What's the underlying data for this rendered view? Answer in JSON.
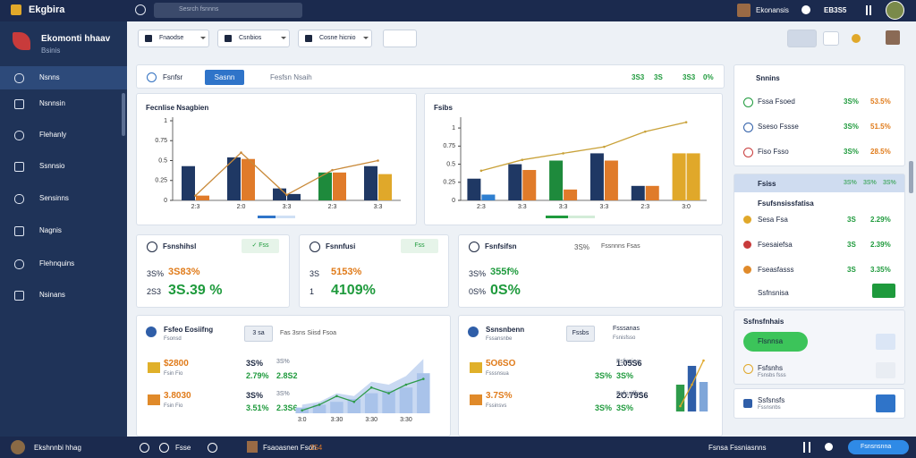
{
  "topbar": {
    "logo": "Ekgbira",
    "search": "Sesrch fsnnns",
    "user": "Ekonansis",
    "code": "EB3S5"
  },
  "sidebar": {
    "brand": "Ekomonti hhaav",
    "sub": "Bsinis",
    "menu": [
      "Nsnns",
      "Nsnnsin",
      "Flehanly",
      "Ssnnsio",
      "Sensinns",
      "Nagnis",
      "Flehnquins",
      "Nsinans"
    ]
  },
  "toolbar": {
    "filters": [
      "Fnaodse",
      "Csnbios",
      "Cosne hicnio"
    ]
  },
  "overview": {
    "tab": "Fsnfsr",
    "button": "Sasnn",
    "label": "Fesfsn Nsaih",
    "stats": [
      "3S3",
      "3S",
      "3S3",
      "0%"
    ]
  },
  "kpis": [
    {
      "title": "Fsnshihsl",
      "badge": "✓ Fss",
      "rows": [
        [
          "3S%",
          "3S83%"
        ],
        [
          "2S3",
          "3S.39 %"
        ]
      ]
    },
    {
      "title": "Fsnnfusi",
      "badge": "Fss",
      "rows": [
        [
          "3S",
          "5153%"
        ],
        [
          "1",
          "4109%"
        ]
      ]
    },
    {
      "title": "Fsnfsifsn",
      "note": "3S%",
      "sub": "Fssnnns Fsas",
      "rows": [
        [
          "3S%",
          "355f%"
        ],
        [
          "0S%",
          "0S%"
        ]
      ]
    }
  ],
  "left_card": {
    "title": "Fsfeo Eosiifng",
    "sub": "Fsonsd",
    "button": "3 sa",
    "filter": "Fas 3sns Siisd Fsoa",
    "rows": [
      [
        "$2800",
        "Fsin Fio",
        "2.8S2",
        "3S%",
        "2.79%",
        "3S%"
      ],
      [
        "3.8030",
        "Fsin Fio",
        "2.3S6",
        "3S%",
        "3.51%",
        "3S%"
      ]
    ]
  },
  "right_card": {
    "title": "Ssnsnbenn",
    "sub": "Fssansnbe",
    "button": "Fssbs",
    "tab": "Fsssanas",
    "tab_sub": "Fsnisfsso",
    "rows": [
      [
        "5O6SO",
        "Fsssnsua",
        "3S%",
        "1.05S6",
        "3S%",
        "Fsfnsioa"
      ],
      [
        "3.7S%",
        "Fssinsvs",
        "3S%",
        "2O.79S6",
        "3S%",
        "Fsfnsiffsa"
      ]
    ]
  },
  "panel_a": {
    "title": "Snnins",
    "rows": [
      [
        "Fssa Fsoed",
        "3S%",
        "53.5%"
      ],
      [
        "Sseso Fssse",
        "3S%",
        "51.5%"
      ],
      [
        "Fiso Fsso",
        "3S%",
        "28.5%"
      ]
    ]
  },
  "panel_b": {
    "title": "Fsiss",
    "stats": [
      "3S%",
      "3S%",
      "3S%"
    ],
    "sub": "Fsufsnsissfatisa",
    "rows": [
      [
        "Sesa Fsa",
        "3S",
        "2.29%"
      ],
      [
        "Fsesaiefsa",
        "3S",
        "2.39%"
      ],
      [
        "Fseasfasss",
        "3S",
        "3.35%"
      ]
    ],
    "last": "Ssfnsnisa"
  },
  "panel_c": {
    "title": "Ssfnsfnhais",
    "pill": "Flsnnsa",
    "item": "Fsfsnhs",
    "item_sub": "Fsnsbs fsss",
    "last": "Ssfsnsfs",
    "last_sub": "Fssnsnbs"
  },
  "bottombar": {
    "user": "Ekshnnbi hhag",
    "home": "Fsse",
    "file": "Fsaoasnen Fsoh",
    "count": "3S4",
    "status": "Fsnsa Fssniasnns",
    "button": "Fsnsnsnna"
  },
  "chart_data": [
    {
      "type": "bar",
      "title": "Fecnlise Nsagbien",
      "categories": [
        "2:3",
        "2:0",
        "3:3",
        "2:3",
        "3:3"
      ],
      "ylim": [
        0,
        1
      ],
      "yticks": [
        0,
        0.25,
        0.5,
        0.75,
        1
      ],
      "series": [
        {
          "colors": [
            "#1f3864",
            "#1f3864",
            "#1f3864",
            "#1e8a3c",
            "#1f3864"
          ],
          "values": [
            0.43,
            0.54,
            0.15,
            0.35,
            0.43
          ]
        },
        {
          "colors": [
            "#e07b2a",
            "#e07b2a",
            "#1f3864",
            "#e07b2a",
            "#e0a82a"
          ],
          "values": [
            0.06,
            0.52,
            0.08,
            0.35,
            0.33
          ]
        },
        {
          "type": "line",
          "color": "#c98a3a",
          "values": [
            0.06,
            0.6,
            0.07,
            0.38,
            0.5
          ]
        }
      ]
    },
    {
      "type": "bar",
      "title": "Fsibs",
      "categories": [
        "2:3",
        "3:3",
        "3:3",
        "3:3",
        "2:3",
        "3:0"
      ],
      "ylim": [
        0,
        1.1
      ],
      "yticks": [
        0,
        0.25,
        0.5,
        0.75,
        1
      ],
      "series": [
        {
          "colors": [
            "#1f3864",
            "#1f3864",
            "#1e8a3c",
            "#1f3864",
            "#1f3864",
            "#e0a82a"
          ],
          "values": [
            0.3,
            0.5,
            0.55,
            0.65,
            0.2,
            0.65
          ]
        },
        {
          "colors": [
            "#2f7fd0",
            "#e07b2a",
            "#e07b2a",
            "#e07b2a",
            "#e07b2a",
            "#e0a82a"
          ],
          "values": [
            0.08,
            0.42,
            0.15,
            0.55,
            0.2,
            0.65
          ]
        },
        {
          "type": "line",
          "color": "#c9a23a",
          "values": [
            0.41,
            0.56,
            0.65,
            0.74,
            0.95,
            1.08
          ]
        }
      ]
    },
    {
      "type": "bar",
      "ylim": [
        0,
        1
      ],
      "series": [
        {
          "color": "#8fbbec",
          "values": [
            0.15,
            0.3,
            0.2,
            0.35,
            0.3,
            0.45,
            0.9
          ]
        },
        {
          "type": "line",
          "color": "#3d7cc9",
          "values": [
            0.25,
            0.3,
            0.28,
            0.35,
            0.4,
            0.6,
            0.95
          ]
        }
      ]
    },
    {
      "type": "area",
      "ylim": [
        0,
        1
      ],
      "categories": [
        "3:0",
        null,
        "3:30",
        null,
        "3:30",
        null,
        "3:30",
        null
      ],
      "series": [
        {
          "color": "#c9d9f2",
          "values": [
            0.15,
            0.2,
            0.35,
            0.3,
            0.55,
            0.5,
            0.65,
            0.95
          ]
        },
        {
          "type": "bar",
          "color": "#a9c3ea",
          "values": [
            0.1,
            0.15,
            0.2,
            0.25,
            0.35,
            0.4,
            0.45,
            0.7
          ]
        },
        {
          "type": "line",
          "color": "#2e9b4a",
          "values": [
            0.05,
            0.15,
            0.3,
            0.2,
            0.45,
            0.35,
            0.5,
            0.6
          ]
        }
      ]
    },
    {
      "type": "bar",
      "ylim": [
        0,
        1
      ],
      "series": [
        {
          "colors": [
            "#2e9b4a",
            "#2f5ea8",
            "#7fa6d9"
          ],
          "values": [
            0.5,
            0.85,
            0.55
          ]
        },
        {
          "type": "line",
          "color": "#e0a82a",
          "values": [
            0.1,
            0.5,
            0.95
          ]
        }
      ]
    }
  ]
}
